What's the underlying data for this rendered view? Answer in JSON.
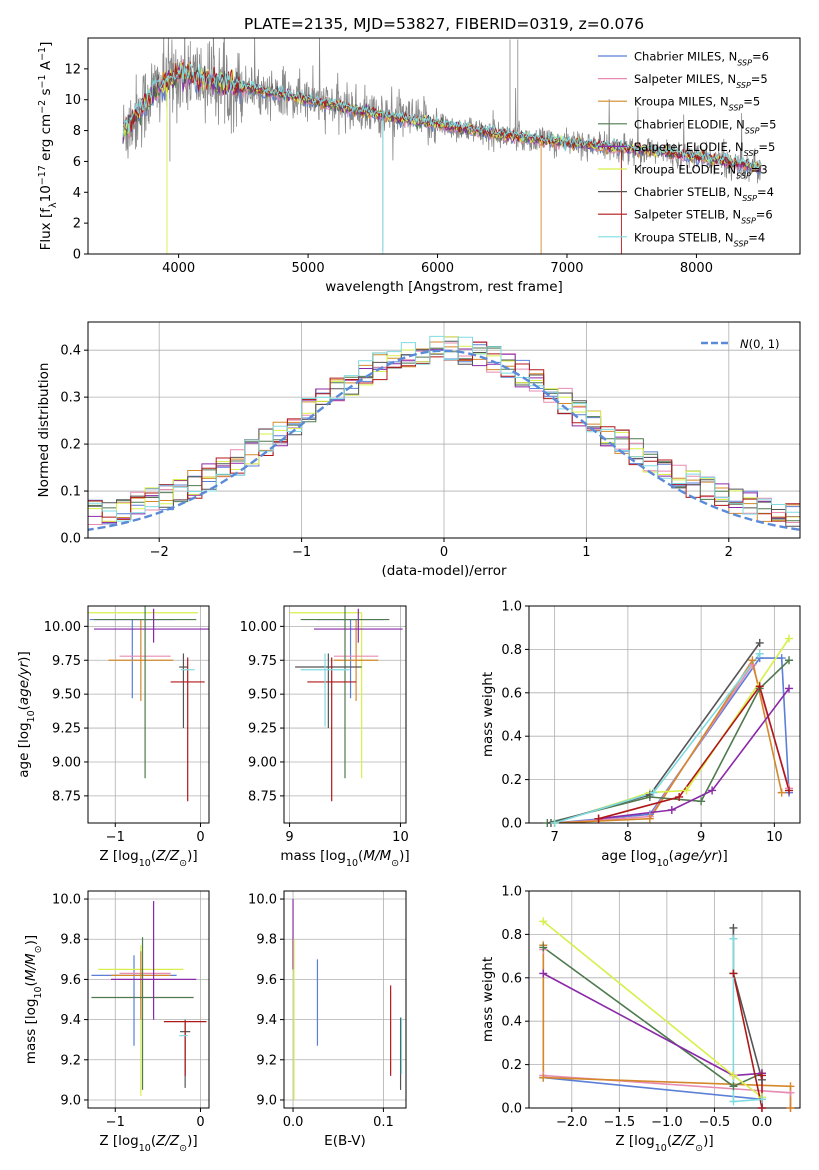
{
  "figure": {
    "title": "PLATE=2135, MJD=53827, FIBERID=0319, z=0.076"
  },
  "colors": {
    "Chabrier MILES": "#5b7fd6",
    "Salpeter MILES": "#e78bb3",
    "Kroupa MILES": "#d4882a",
    "Chabrier ELODIE": "#4f7a4f",
    "Salpeter ELODIE": "#8a2aa8",
    "Kroupa ELODIE": "#d8ef4a",
    "Chabrier STELIB": "#555555",
    "Salpeter STELIB": "#b01818",
    "Kroupa STELIB": "#7fdbe0",
    "data": "#888888",
    "normal_curve": "#5b8ad8"
  },
  "chart_data": [
    {
      "id": "spectrum",
      "type": "line",
      "title": "PLATE=2135, MJD=53827, FIBERID=0319, z=0.076",
      "xlabel": "wavelength [Angstrom, rest frame]",
      "ylabel": "Flux [f_λ 10^-17 erg cm^-2 s^-1 A^-1]",
      "xlim": [
        3300,
        8800
      ],
      "ylim": [
        0,
        14
      ],
      "xticks": [
        4000,
        5000,
        6000,
        7000,
        8000
      ],
      "yticks": [
        0,
        2,
        4,
        6,
        8,
        10,
        12
      ],
      "grid": false,
      "legend": "top-right",
      "data_trend": {
        "x": [
          3570,
          3800,
          4000,
          4200,
          4500,
          5000,
          5500,
          6000,
          6500,
          7000,
          7500,
          8000,
          8500
        ],
        "y": [
          7.8,
          10.5,
          11.7,
          11.3,
          10.8,
          10.0,
          9.1,
          8.4,
          7.7,
          7.2,
          6.8,
          6.3,
          5.6
        ]
      },
      "series": [
        {
          "name": "Chabrier MILES",
          "nssp": "6"
        },
        {
          "name": "Salpeter MILES",
          "nssp": "5"
        },
        {
          "name": "Kroupa MILES",
          "nssp": "5"
        },
        {
          "name": "Chabrier ELODIE",
          "nssp": "5"
        },
        {
          "name": "Salpeter ELODIE",
          "nssp": "5"
        },
        {
          "name": "Kroupa ELODIE",
          "nssp": "3"
        },
        {
          "name": "Chabrier STELIB",
          "nssp": "4"
        },
        {
          "name": "Salpeter STELIB",
          "nssp": "6"
        },
        {
          "name": "Kroupa STELIB",
          "nssp": "4"
        }
      ]
    },
    {
      "id": "residual_hist",
      "type": "bar",
      "xlabel": "(data-model)/error",
      "ylabel": "Normed distribution",
      "xlim": [
        -2.5,
        2.5
      ],
      "ylim": [
        0,
        0.46
      ],
      "xticks": [
        -2,
        -1,
        0,
        1,
        2
      ],
      "yticks": [
        0.0,
        0.1,
        0.2,
        0.3,
        0.4
      ],
      "grid": true,
      "legend": "top-right",
      "legend_label": "N(0, 1)",
      "bin_width": 0.1
    },
    {
      "id": "age_vs_Z",
      "type": "scatter",
      "xlabel": "Z [log10(Z/Z⊙)]",
      "ylabel": "age [log10(age/yr)]",
      "xlim": [
        -1.32,
        0.1
      ],
      "ylim": [
        8.55,
        10.15
      ],
      "xticks": [
        -1,
        0
      ],
      "yticks": [
        8.75,
        9.0,
        9.25,
        9.5,
        9.75,
        10.0
      ],
      "grid": true,
      "points": [
        {
          "x": -0.8,
          "y": 10.05,
          "xerr": [
            0.5,
            0.5
          ],
          "yerr": [
            0.58,
            0.0
          ],
          "c": "Chabrier MILES"
        },
        {
          "x": -0.68,
          "y": 10.1,
          "xerr": [
            0.65,
            0.65
          ],
          "yerr": [
            0.0,
            0.0
          ],
          "c": "Kroupa ELODIE"
        },
        {
          "x": -0.65,
          "y": 9.78,
          "xerr": [
            0.3,
            0.3
          ],
          "yerr": [
            0.0,
            0.0
          ],
          "c": "Salpeter MILES"
        },
        {
          "x": -0.7,
          "y": 9.75,
          "xerr": [
            0.38,
            0.38
          ],
          "yerr": [
            0.3,
            0.3
          ],
          "c": "Kroupa MILES"
        },
        {
          "x": -0.65,
          "y": 10.05,
          "xerr": [
            0.6,
            0.6
          ],
          "yerr": [
            1.17,
            0.1
          ],
          "c": "Chabrier ELODIE"
        },
        {
          "x": -0.55,
          "y": 9.98,
          "xerr": [
            0.7,
            0.7
          ],
          "yerr": [
            0.1,
            0.15
          ],
          "c": "Salpeter ELODIE"
        },
        {
          "x": -0.2,
          "y": 9.7,
          "xerr": [
            0.05,
            0.05
          ],
          "yerr": [
            0.45,
            0.1
          ],
          "c": "Chabrier STELIB"
        },
        {
          "x": -0.15,
          "y": 9.59,
          "xerr": [
            0.2,
            0.2
          ],
          "yerr": [
            0.88,
            0.18
          ],
          "c": "Salpeter STELIB"
        },
        {
          "x": -0.15,
          "y": 9.68,
          "xerr": [
            0.08,
            0.08
          ],
          "yerr": [
            0.0,
            0.0
          ],
          "c": "Kroupa STELIB"
        }
      ]
    },
    {
      "id": "age_vs_mass",
      "type": "scatter",
      "xlabel": "mass [log10(M/M⊙)]",
      "ylabel": "",
      "xlim": [
        8.95,
        10.05
      ],
      "ylim": [
        8.55,
        10.15
      ],
      "xticks": [
        9,
        10
      ],
      "yticks": [
        8.75,
        9.0,
        9.25,
        9.5,
        9.75,
        10.0
      ],
      "grid": true,
      "points": [
        {
          "x": 9.55,
          "y": 10.05,
          "xerr": [
            0.3,
            0.3
          ],
          "yerr": [
            0.58,
            0.0
          ],
          "c": "Chabrier MILES"
        },
        {
          "x": 9.65,
          "y": 10.1,
          "xerr": [
            0.65,
            0.0
          ],
          "yerr": [
            1.22,
            0.0
          ],
          "c": "Kroupa ELODIE"
        },
        {
          "x": 9.6,
          "y": 9.78,
          "xerr": [
            0.2,
            0.2
          ],
          "yerr": [
            0.0,
            0.0
          ],
          "c": "Salpeter MILES"
        },
        {
          "x": 9.6,
          "y": 9.75,
          "xerr": [
            0.2,
            0.2
          ],
          "yerr": [
            0.3,
            0.3
          ],
          "c": "Kroupa MILES"
        },
        {
          "x": 9.5,
          "y": 10.05,
          "xerr": [
            0.4,
            0.4
          ],
          "yerr": [
            1.17,
            0.1
          ],
          "c": "Chabrier ELODIE"
        },
        {
          "x": 9.62,
          "y": 9.98,
          "xerr": [
            0.4,
            0.4
          ],
          "yerr": [
            0.1,
            0.15
          ],
          "c": "Salpeter ELODIE"
        },
        {
          "x": 9.35,
          "y": 9.7,
          "xerr": [
            0.3,
            0.3
          ],
          "yerr": [
            0.45,
            0.1
          ],
          "c": "Chabrier STELIB"
        },
        {
          "x": 9.38,
          "y": 9.59,
          "xerr": [
            0.22,
            0.22
          ],
          "yerr": [
            0.88,
            0.18
          ],
          "c": "Salpeter STELIB"
        },
        {
          "x": 9.32,
          "y": 9.68,
          "xerr": [
            0.22,
            0.22
          ],
          "yerr": [
            0.42,
            0.12
          ],
          "c": "Kroupa STELIB"
        }
      ]
    },
    {
      "id": "massweight_vs_age",
      "type": "line",
      "xlabel": "age [log10(age/yr)]",
      "ylabel": "mass weight",
      "xlim": [
        6.65,
        10.35
      ],
      "ylim": [
        0,
        1.0
      ],
      "xticks": [
        7,
        8,
        9,
        10
      ],
      "yticks": [
        0.0,
        0.2,
        0.4,
        0.6,
        0.8,
        1.0
      ],
      "grid": true,
      "series": [
        {
          "c": "Chabrier MILES",
          "x": [
            7.0,
            8.3,
            9.8,
            10.1,
            10.2
          ],
          "y": [
            0.0,
            0.04,
            0.76,
            0.76,
            0.14
          ]
        },
        {
          "c": "Salpeter MILES",
          "x": [
            7.0,
            8.3,
            9.7,
            10.2
          ],
          "y": [
            0.0,
            0.03,
            0.73,
            0.16
          ]
        },
        {
          "c": "Kroupa MILES",
          "x": [
            7.0,
            8.3,
            9.7,
            10.1
          ],
          "y": [
            0.0,
            0.02,
            0.75,
            0.14
          ]
        },
        {
          "c": "Chabrier ELODIE",
          "x": [
            6.9,
            8.3,
            9.0,
            9.8,
            10.2
          ],
          "y": [
            0.0,
            0.12,
            0.1,
            0.62,
            0.75
          ]
        },
        {
          "c": "Salpeter ELODIE",
          "x": [
            7.6,
            8.6,
            9.15,
            10.2
          ],
          "y": [
            0.02,
            0.06,
            0.15,
            0.62
          ]
        },
        {
          "c": "Kroupa ELODIE",
          "x": [
            7.0,
            8.3,
            8.8,
            10.2
          ],
          "y": [
            0.0,
            0.14,
            0.15,
            0.85
          ]
        },
        {
          "c": "Chabrier STELIB",
          "x": [
            6.95,
            8.3,
            9.8
          ],
          "y": [
            0.0,
            0.13,
            0.83
          ]
        },
        {
          "c": "Salpeter STELIB",
          "x": [
            7.6,
            8.7,
            9.8,
            10.2
          ],
          "y": [
            0.02,
            0.12,
            0.63,
            0.15
          ]
        },
        {
          "c": "Kroupa STELIB",
          "x": [
            7.0,
            8.35,
            9.8
          ],
          "y": [
            0.0,
            0.14,
            0.78
          ]
        }
      ]
    },
    {
      "id": "mass_vs_Z",
      "type": "scatter",
      "xlabel": "Z [log10(Z/Z⊙)]",
      "ylabel": "mass [log10(M/M⊙)]",
      "xlim": [
        -1.32,
        0.1
      ],
      "ylim": [
        8.96,
        10.04
      ],
      "xticks": [
        -1,
        0
      ],
      "yticks": [
        9.0,
        9.2,
        9.4,
        9.6,
        9.8,
        10.0
      ],
      "grid": true,
      "points": [
        {
          "x": -0.78,
          "y": 9.62,
          "xerr": [
            0.5,
            0.5
          ],
          "yerr": [
            0.35,
            0.1
          ],
          "c": "Chabrier MILES"
        },
        {
          "x": -0.7,
          "y": 9.65,
          "xerr": [
            0.5,
            0.5
          ],
          "yerr": [
            0.63,
            0.12
          ],
          "c": "Kroupa ELODIE"
        },
        {
          "x": -0.65,
          "y": 9.63,
          "xerr": [
            0.3,
            0.3
          ],
          "yerr": [
            0.0,
            0.0
          ],
          "c": "Salpeter MILES"
        },
        {
          "x": -0.7,
          "y": 9.62,
          "xerr": [
            0.35,
            0.35
          ],
          "yerr": [
            0.22,
            0.12
          ],
          "c": "Kroupa MILES"
        },
        {
          "x": -0.68,
          "y": 9.51,
          "xerr": [
            0.6,
            0.6
          ],
          "yerr": [
            0.46,
            0.3
          ],
          "c": "Chabrier ELODIE"
        },
        {
          "x": -0.55,
          "y": 9.6,
          "xerr": [
            0.5,
            0.5
          ],
          "yerr": [
            0.2,
            0.39
          ],
          "c": "Salpeter ELODIE"
        },
        {
          "x": -0.18,
          "y": 9.34,
          "xerr": [
            0.06,
            0.06
          ],
          "yerr": [
            0.28,
            0.06
          ],
          "c": "Chabrier STELIB"
        },
        {
          "x": -0.18,
          "y": 9.39,
          "xerr": [
            0.25,
            0.25
          ],
          "yerr": [
            0.27,
            0.0
          ],
          "c": "Salpeter STELIB"
        },
        {
          "x": -0.2,
          "y": 9.32,
          "xerr": [
            0.05,
            0.05
          ],
          "yerr": [
            0.0,
            0.0
          ],
          "c": "Kroupa STELIB"
        }
      ]
    },
    {
      "id": "mass_vs_EBV",
      "type": "scatter",
      "xlabel": "E(B-V)",
      "ylabel": "",
      "xlim": [
        -0.01,
        0.125
      ],
      "ylim": [
        8.96,
        10.04
      ],
      "xticks": [
        0.0,
        0.1
      ],
      "yticks": [
        9.0,
        9.2,
        9.4,
        9.6,
        9.8,
        10.0
      ],
      "grid": true,
      "points": [
        {
          "x": 0.027,
          "y": 9.5,
          "xerr": [
            0,
            0
          ],
          "yerr": [
            0.23,
            0.2
          ],
          "c": "Chabrier MILES"
        },
        {
          "x": 0.0,
          "y": 9.8,
          "xerr": [
            0,
            0
          ],
          "yerr": [
            0.15,
            0.2
          ],
          "c": "Salpeter ELODIE"
        },
        {
          "x": 0.001,
          "y": 9.5,
          "xerr": [
            0,
            0
          ],
          "yerr": [
            0.5,
            0.3
          ],
          "c": "Kroupa ELODIE"
        },
        {
          "x": 0.108,
          "y": 9.33,
          "xerr": [
            0,
            0
          ],
          "yerr": [
            0.21,
            0.24
          ],
          "c": "Salpeter STELIB"
        },
        {
          "x": 0.119,
          "y": 9.25,
          "xerr": [
            0,
            0
          ],
          "yerr": [
            0.2,
            0.16
          ],
          "c": "Chabrier STELIB"
        },
        {
          "x": 0.12,
          "y": 9.23,
          "xerr": [
            0,
            0
          ],
          "yerr": [
            0.1,
            0.18
          ],
          "c": "Kroupa STELIB"
        }
      ]
    },
    {
      "id": "massweight_vs_Z",
      "type": "line",
      "xlabel": "Z [log10(Z/Z⊙)]",
      "ylabel": "mass weight",
      "xlim": [
        -2.45,
        0.4
      ],
      "ylim": [
        0,
        1.0
      ],
      "xticks": [
        -2.0,
        -1.5,
        -1.0,
        -0.5,
        0.0
      ],
      "yticks": [
        0.0,
        0.2,
        0.4,
        0.6,
        0.8,
        1.0
      ],
      "grid": true,
      "series": [
        {
          "c": "Chabrier MILES",
          "x": [
            -2.3,
            0.0,
            0.0
          ],
          "y": [
            0.14,
            0.04,
            0.0
          ]
        },
        {
          "c": "Salpeter MILES",
          "x": [
            -2.3,
            -2.3,
            0.3,
            0.3
          ],
          "y": [
            0.73,
            0.15,
            0.07,
            0.0
          ]
        },
        {
          "c": "Kroupa MILES",
          "x": [
            -2.3,
            -2.3,
            0.3,
            0.3
          ],
          "y": [
            0.75,
            0.14,
            0.1,
            0.0
          ]
        },
        {
          "c": "Chabrier ELODIE",
          "x": [
            -2.3,
            -0.3,
            0.0
          ],
          "y": [
            0.74,
            0.1,
            0.16
          ]
        },
        {
          "c": "Salpeter ELODIE",
          "x": [
            -2.3,
            -0.3,
            0.0
          ],
          "y": [
            0.62,
            0.15,
            0.16
          ]
        },
        {
          "c": "Kroupa ELODIE",
          "x": [
            -2.3,
            -0.3,
            0.0
          ],
          "y": [
            0.86,
            0.15,
            0.05
          ]
        },
        {
          "c": "Chabrier STELIB",
          "x": [
            -0.3,
            -0.3,
            0.0
          ],
          "y": [
            0.83,
            0.62,
            0.13
          ]
        },
        {
          "c": "Salpeter STELIB",
          "x": [
            -0.3,
            0.0,
            0.0
          ],
          "y": [
            0.62,
            0.0,
            0.15
          ]
        },
        {
          "c": "Kroupa STELIB",
          "x": [
            -0.3,
            -0.3,
            0.0
          ],
          "y": [
            0.78,
            0.03,
            0.04
          ]
        }
      ]
    }
  ]
}
